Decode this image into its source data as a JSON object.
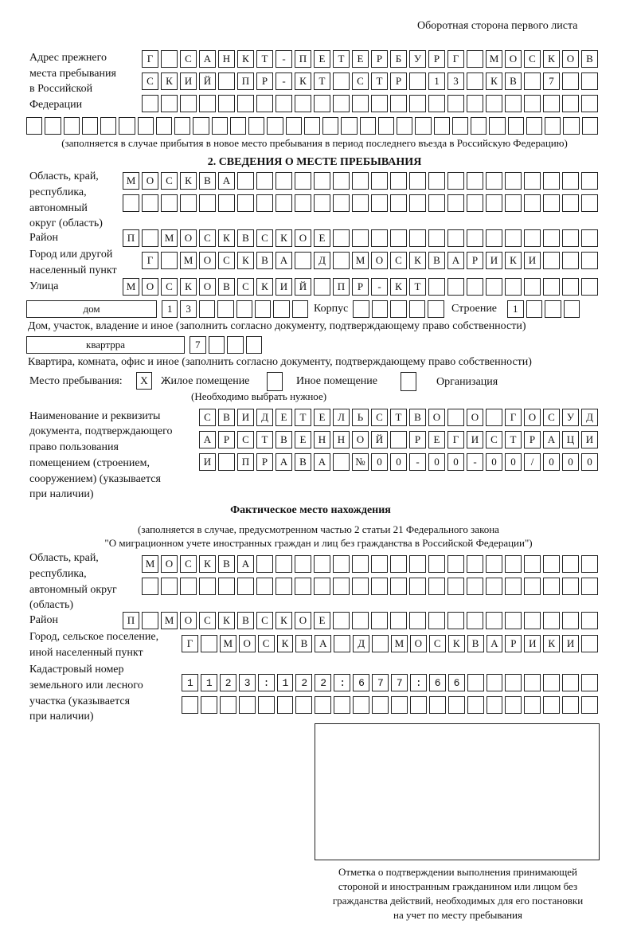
{
  "header": {
    "title": "Оборотная сторона первого листа"
  },
  "prev_address": {
    "label": [
      "Адрес прежнего",
      "места пребывания",
      "в Российской",
      "Федерации"
    ],
    "rows": [
      "Г САНКТ-ПЕТЕРБУРГ МОСКОВ",
      "СКИЙ ПР-КТ СТР 13 КВ 7  ",
      "                        ",
      "                               "
    ],
    "note": "(заполняется в случае прибытия в новое место пребывания в период последнего въезда в Российскую Федерацию)"
  },
  "section2": {
    "title": "2. СВЕДЕНИЯ О МЕСТЕ ПРЕБЫВАНИЯ",
    "region_label": [
      "Область, край,",
      "республика,",
      "автономный",
      "округ (область)"
    ],
    "region_rows": [
      "МОСКВА                   ",
      "                         "
    ],
    "district_label": "Район",
    "district": "П МОСКВСКОЕ              ",
    "city_label": [
      "Город или другой",
      "населенный пункт"
    ],
    "city": "Г МОСКВА Д МОСКВАРИКИ   ",
    "street_label": "Улица",
    "street": "МОСКОВСКИЙ ПР-КТ         ",
    "house_type": "дом",
    "house": "13      ",
    "korpus_label": "Корпус",
    "korpus": "     ",
    "building_label": "Строение",
    "building": "1   ",
    "house_note": "Дом, участок, владение и иное (заполнить согласно документу, подтверждающему право собственности)",
    "apt_type": "квартрра",
    "apt": "7   ",
    "apt_note": "Квартира, комната, офис и иное (заполнить согласно документу, подтверждающему право собственности)",
    "stay_label": "Место пребывания:",
    "options": [
      {
        "label": "Жилое помещение",
        "mark": "X"
      },
      {
        "label": "Иное помещение",
        "mark": ""
      },
      {
        "label": "Организация",
        "mark": ""
      }
    ],
    "choose_note": "(Необходимо выбрать нужное)",
    "doc_label": [
      "Наименование и реквизиты",
      "документа, подтверждающего",
      "право пользования",
      "помещением (строением,",
      "сооружением) (указывается",
      "при наличии)"
    ],
    "doc_rows": [
      "СВИДЕТЕЛЬСТВО О ГОСУД",
      "АРСТВЕННОЙ РЕГИСТРАЦИ",
      "И ПРАВА №00-00-00/000"
    ]
  },
  "actual": {
    "title": "Фактическое место нахождения",
    "note": [
      "(заполняется в случае, предусмотренном частью 2 статьи 21 Федерального закона",
      "\"О миграционном учете иностранных граждан и лиц без гражданства в Российской Федерации\")"
    ],
    "region_label": [
      "Область, край,",
      "республика,",
      "автономный округ",
      "(область)"
    ],
    "region_rows": [
      "МОСКВА                  ",
      "                        "
    ],
    "district_label": "Район",
    "district": "П МОСКВСКОЕ              ",
    "city_label": [
      "Город, сельское поселение,",
      "иной населенный пункт"
    ],
    "city": "Г МОСКВА Д МОСКВАРИКИ ",
    "cadastre_label": [
      "Кадастровый номер",
      "земельного или лесного",
      "участка (указывается",
      "при наличии)"
    ],
    "cadastre_rows": [
      "1123:122:677:66       ",
      "                      "
    ]
  },
  "stamp": {
    "caption": [
      "Отметка о подтверждении выполнения принимающей",
      "стороной и иностранным гражданином или лицом без",
      "гражданства действий, необходимых для его постановки",
      "на учет по месту пребывания"
    ]
  }
}
